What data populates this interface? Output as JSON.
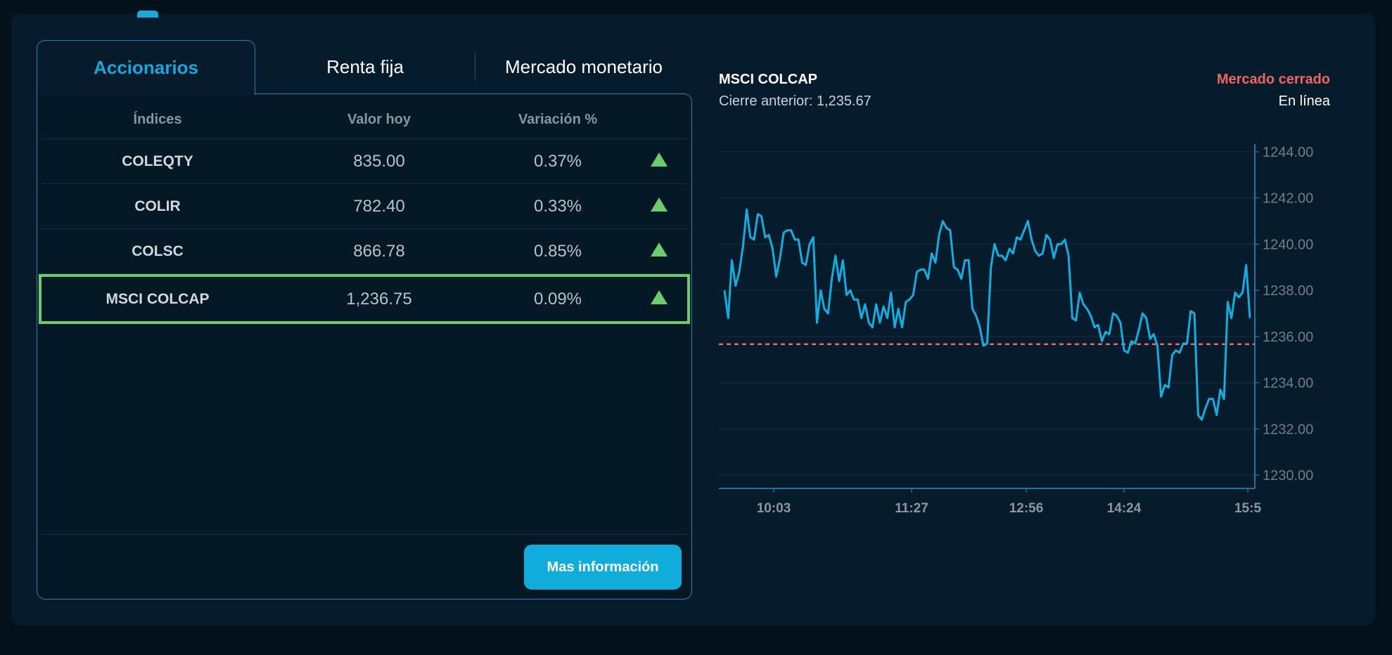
{
  "tabs": [
    {
      "label": "Accionarios",
      "active": true
    },
    {
      "label": "Renta fija",
      "active": false
    },
    {
      "label": "Mercado monetario",
      "active": false
    }
  ],
  "table": {
    "headers": [
      "Índices",
      "Valor hoy",
      "Variación %"
    ],
    "rows": [
      {
        "name": "COLEQTY",
        "value": "835.00",
        "change": "0.37%",
        "trend": "up"
      },
      {
        "name": "COLIR",
        "value": "782.40",
        "change": "0.33%",
        "trend": "up"
      },
      {
        "name": "COLSC",
        "value": "866.78",
        "change": "0.85%",
        "trend": "up"
      },
      {
        "name": "MSCI COLCAP",
        "value": "1,236.75",
        "change": "0.09%",
        "trend": "up",
        "selected": true
      }
    ]
  },
  "more_button": "Mas información",
  "chart_header": {
    "title": "MSCI COLCAP",
    "previous_close": "Cierre anterior: 1,235.67",
    "market_status": "Mercado cerrado",
    "connection": "En línea"
  },
  "colors": {
    "accent": "#10acdc",
    "up": "#6ccb6c",
    "closed": "#ef6660",
    "line": "#12aee0"
  },
  "chart_data": {
    "type": "line",
    "title": "MSCI COLCAP",
    "ylim": [
      1229.3,
      1244.4
    ],
    "yticks": [
      "1244.00",
      "1242.00",
      "1240.00",
      "1238.00",
      "1236.00",
      "1234.00",
      "1232.00",
      "1230.00"
    ],
    "ytick_values": [
      1244,
      1242,
      1240,
      1238,
      1236,
      1234,
      1232,
      1230
    ],
    "xtick_labels": [
      "10:03",
      "11:27",
      "12:56",
      "14:24",
      "15:5"
    ],
    "reference_line": 1235.67,
    "grid": true,
    "series": [
      {
        "values": [
          1238.0,
          1236.8,
          1239.3,
          1238.2,
          1238.8,
          1239.9,
          1241.5,
          1240.3,
          1240.2,
          1241.3,
          1241.2,
          1240.3,
          1240.4,
          1239.8,
          1238.6,
          1239.4,
          1240.5,
          1240.6,
          1240.6,
          1240.2,
          1240.2,
          1239.2,
          1239.1,
          1240.0,
          1240.3,
          1236.6,
          1238.0,
          1237.2,
          1237.0,
          1238.5,
          1239.5,
          1238.4,
          1239.3,
          1237.8,
          1238.0,
          1237.6,
          1237.6,
          1236.8,
          1237.4,
          1236.6,
          1236.4,
          1237.4,
          1236.6,
          1237.3,
          1236.8,
          1237.9,
          1236.4,
          1237.2,
          1236.4,
          1237.5,
          1237.6,
          1237.8,
          1238.8,
          1238.9,
          1238.9,
          1238.5,
          1239.6,
          1239.2,
          1240.4,
          1241.0,
          1240.7,
          1240.6,
          1239.0,
          1238.9,
          1238.5,
          1239.3,
          1239.3,
          1237.2,
          1236.9,
          1236.4,
          1235.6,
          1235.7,
          1239.0,
          1240.0,
          1239.5,
          1239.5,
          1239.3,
          1239.8,
          1239.6,
          1240.3,
          1240.2,
          1240.6,
          1241.0,
          1240.2,
          1239.7,
          1239.5,
          1239.6,
          1240.4,
          1240.2,
          1239.4,
          1240.0,
          1240.0,
          1240.2,
          1239.5,
          1236.8,
          1236.7,
          1237.9,
          1237.4,
          1237.2,
          1236.9,
          1236.4,
          1236.5,
          1235.8,
          1236.2,
          1236.1,
          1237.0,
          1236.9,
          1236.6,
          1235.4,
          1235.3,
          1235.8,
          1235.7,
          1236.3,
          1237.0,
          1236.8,
          1235.9,
          1236.1,
          1235.6,
          1233.4,
          1233.9,
          1233.8,
          1235.2,
          1235.4,
          1235.3,
          1235.7,
          1235.7,
          1237.1,
          1237.0,
          1232.6,
          1232.4,
          1232.9,
          1233.3,
          1233.3,
          1232.6,
          1233.7,
          1233.3,
          1237.5,
          1236.8,
          1237.9,
          1237.7,
          1237.9,
          1239.1,
          1236.8
        ]
      }
    ]
  }
}
